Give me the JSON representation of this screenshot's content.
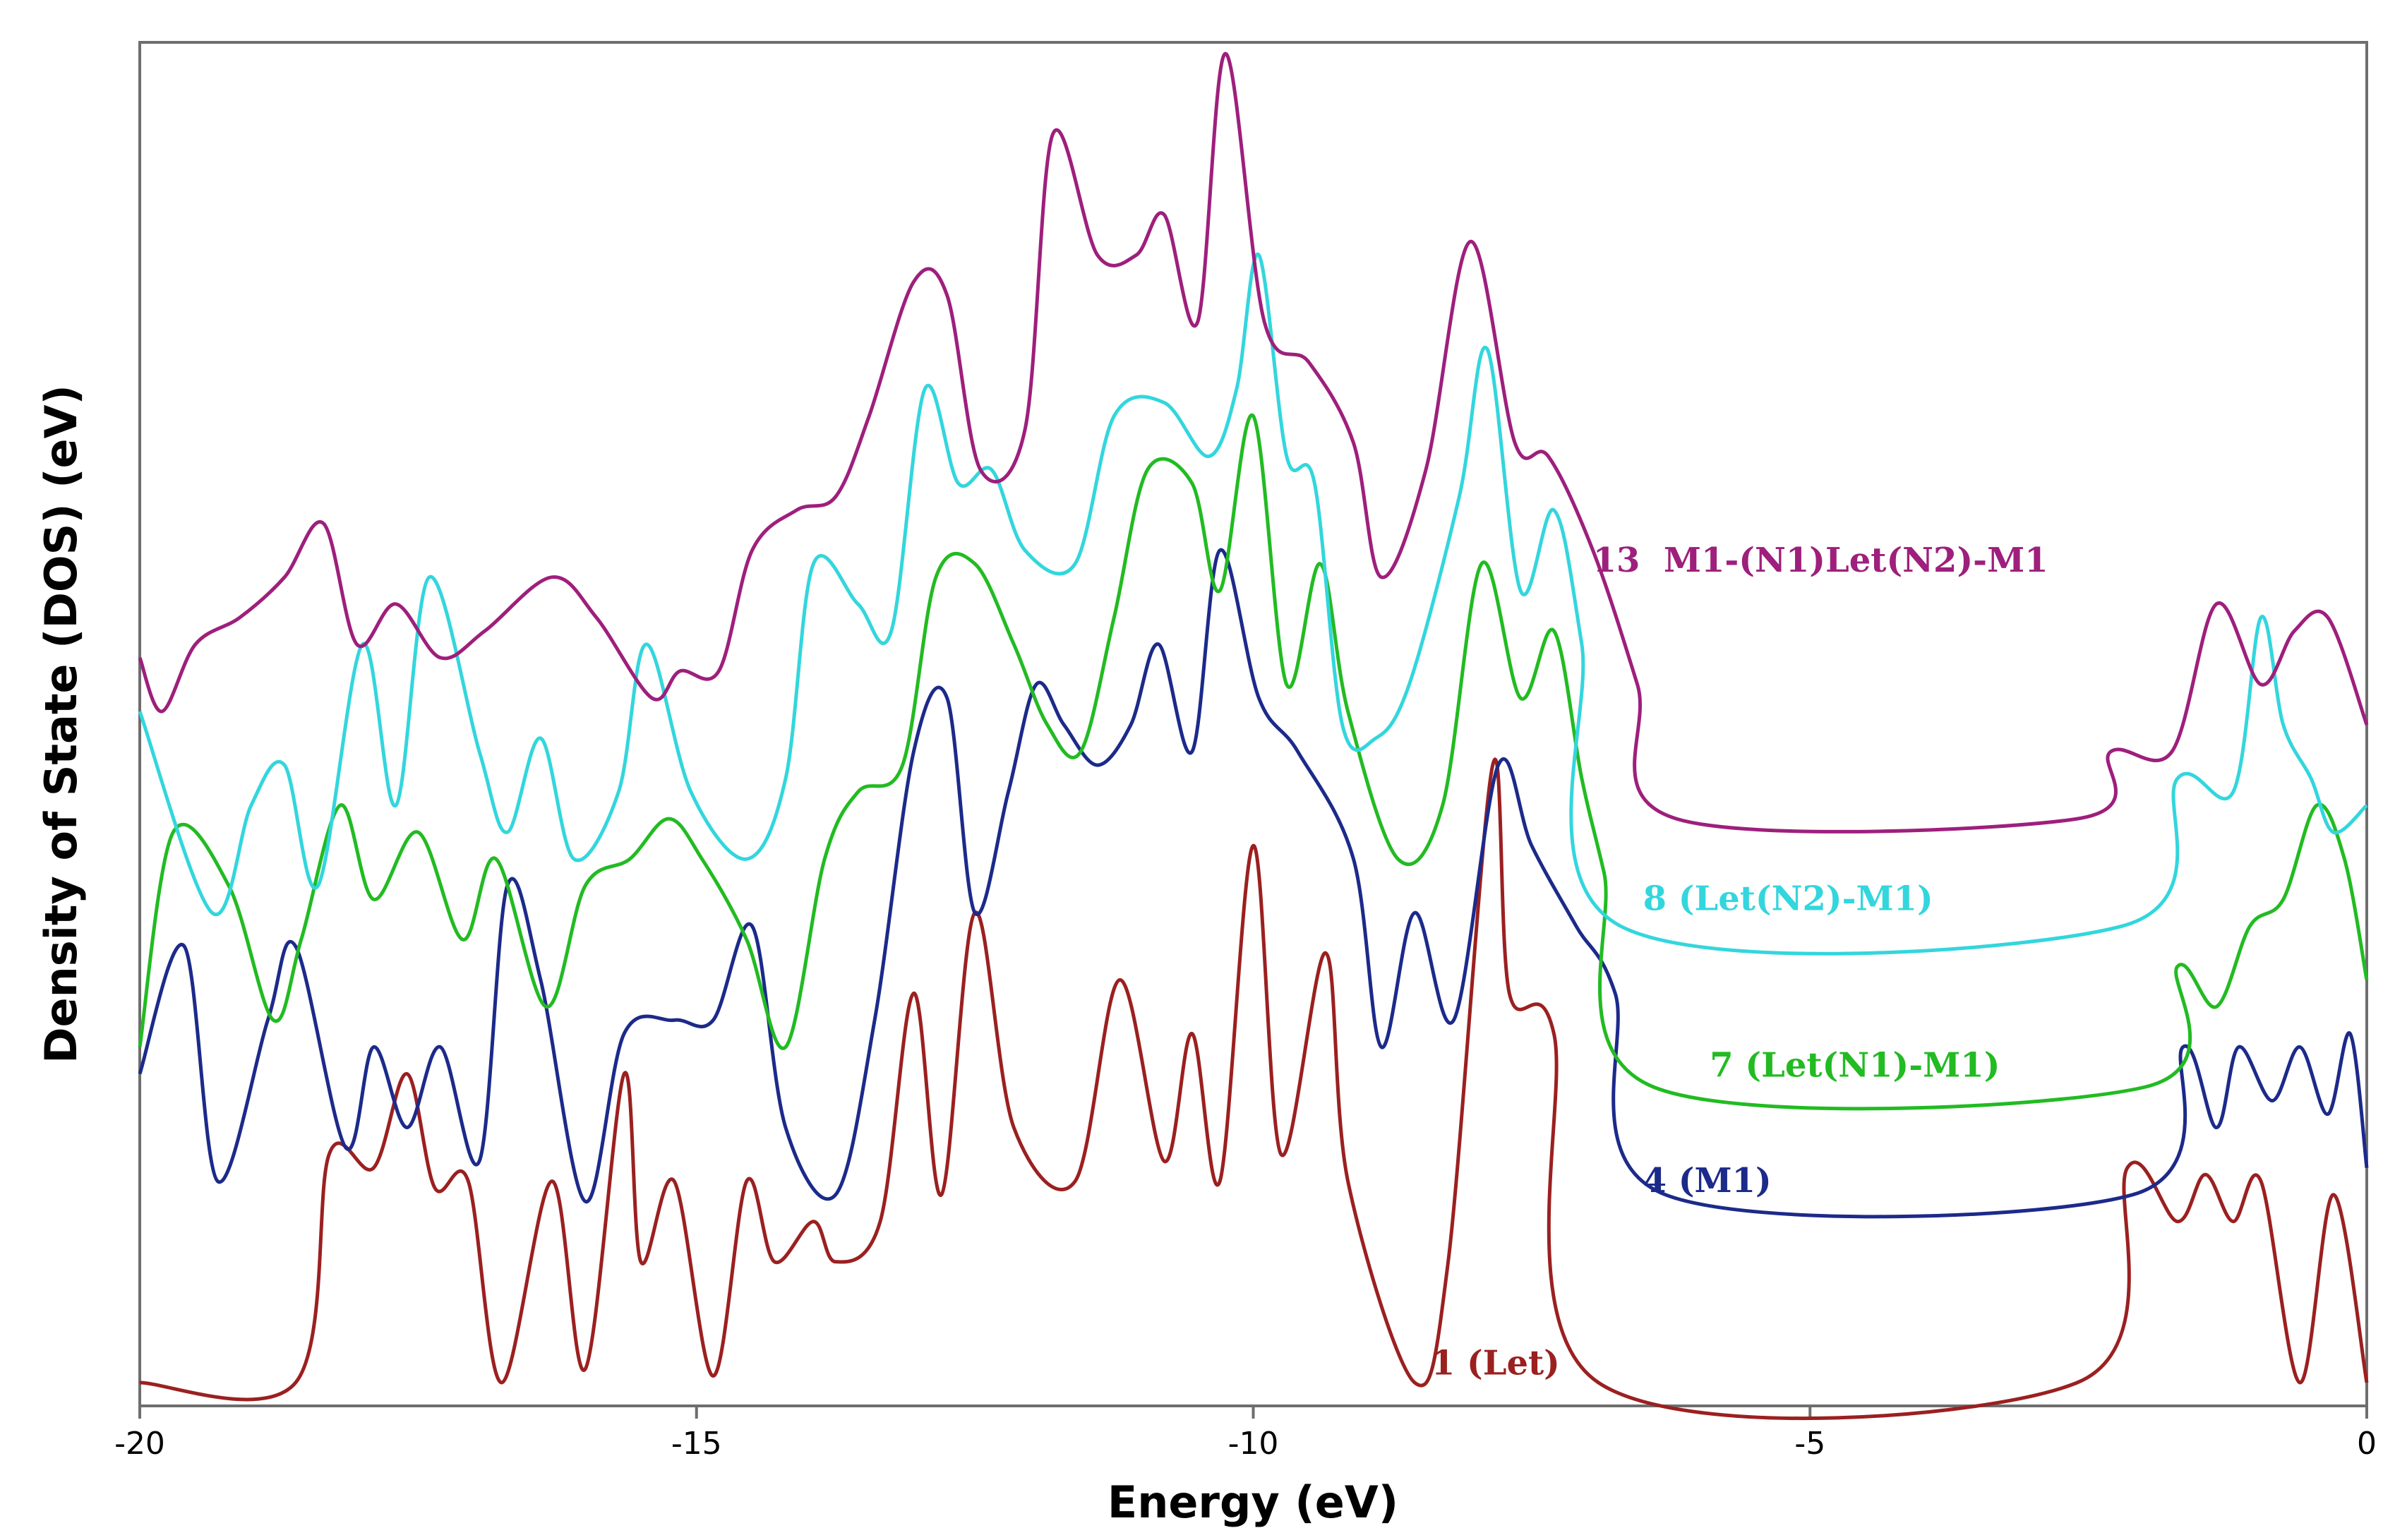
{
  "chart_data": {
    "type": "line",
    "title": "",
    "xlabel": "Energy (eV)",
    "ylabel": "Density of State (DOS) (eV)",
    "xlim": [
      -20,
      0
    ],
    "ylim": [
      0,
      100
    ],
    "xticks": [
      -20,
      -15,
      -10,
      -5,
      0
    ],
    "xtick_labels": [
      "-20",
      "-15",
      "-10",
      "-5",
      "0"
    ],
    "grid": false,
    "series": [
      {
        "name": "1 (Let)",
        "color": "#9b2020",
        "label_at": [
          -8.4,
          1.6
        ],
        "points": [
          [
            -20,
            1
          ],
          [
            -18.6,
            1
          ],
          [
            -18.3,
            18
          ],
          [
            -17.9,
            17
          ],
          [
            -17.6,
            24
          ],
          [
            -17.35,
            15.5
          ],
          [
            -17.05,
            16
          ],
          [
            -16.75,
            1
          ],
          [
            -16.3,
            16
          ],
          [
            -16.0,
            2
          ],
          [
            -15.65,
            24
          ],
          [
            -15.5,
            10
          ],
          [
            -15.2,
            16
          ],
          [
            -14.85,
            1.5
          ],
          [
            -14.55,
            16
          ],
          [
            -14.3,
            10
          ],
          [
            -13.95,
            13
          ],
          [
            -13.75,
            10
          ],
          [
            -13.35,
            13
          ],
          [
            -13.05,
            30
          ],
          [
            -12.8,
            15
          ],
          [
            -12.5,
            36
          ],
          [
            -12.15,
            20
          ],
          [
            -11.6,
            16
          ],
          [
            -11.2,
            31
          ],
          [
            -10.8,
            17.5
          ],
          [
            -10.55,
            27
          ],
          [
            -10.3,
            16
          ],
          [
            -10.0,
            41
          ],
          [
            -9.75,
            18
          ],
          [
            -9.35,
            33
          ],
          [
            -9.15,
            16
          ],
          [
            -8.55,
            1
          ],
          [
            -8.25,
            10
          ],
          [
            -7.85,
            47
          ],
          [
            -7.7,
            30
          ],
          [
            -7.3,
            27
          ],
          [
            -6.9,
            1
          ],
          [
            -2.6,
            1
          ],
          [
            -2.15,
            17
          ],
          [
            -1.7,
            13
          ],
          [
            -1.45,
            16.5
          ],
          [
            -1.2,
            13
          ],
          [
            -0.95,
            16
          ],
          [
            -0.6,
            1
          ],
          [
            -0.3,
            15
          ],
          [
            0,
            1
          ]
        ]
      },
      {
        "name": "4 (M1)",
        "color": "#1c2a8a",
        "label_at": [
          -6.5,
          15.2
        ],
        "points": [
          [
            -20,
            24
          ],
          [
            -19.6,
            33.5
          ],
          [
            -19.3,
            16
          ],
          [
            -18.85,
            28
          ],
          [
            -18.6,
            33.5
          ],
          [
            -18.15,
            18.5
          ],
          [
            -17.9,
            26
          ],
          [
            -17.6,
            20
          ],
          [
            -17.3,
            26
          ],
          [
            -16.95,
            17.5
          ],
          [
            -16.7,
            38
          ],
          [
            -16.4,
            31
          ],
          [
            -16.0,
            14.5
          ],
          [
            -15.65,
            27
          ],
          [
            -15.2,
            28
          ],
          [
            -14.85,
            28
          ],
          [
            -14.5,
            35
          ],
          [
            -14.2,
            20
          ],
          [
            -13.75,
            15
          ],
          [
            -13.4,
            28
          ],
          [
            -13.05,
            48
          ],
          [
            -12.75,
            52
          ],
          [
            -12.5,
            36
          ],
          [
            -12.2,
            45
          ],
          [
            -11.95,
            53
          ],
          [
            -11.7,
            50
          ],
          [
            -11.4,
            47
          ],
          [
            -11.1,
            50
          ],
          [
            -10.85,
            56
          ],
          [
            -10.55,
            48
          ],
          [
            -10.3,
            63
          ],
          [
            -9.95,
            52
          ],
          [
            -9.6,
            48
          ],
          [
            -9.1,
            40
          ],
          [
            -8.85,
            26
          ],
          [
            -8.55,
            36
          ],
          [
            -8.2,
            28
          ],
          [
            -7.8,
            47
          ],
          [
            -7.5,
            41
          ],
          [
            -7.1,
            35
          ],
          [
            -6.75,
            30
          ],
          [
            -6.3,
            15
          ],
          [
            -2.1,
            15
          ],
          [
            -1.65,
            26
          ],
          [
            -1.35,
            20
          ],
          [
            -1.15,
            26
          ],
          [
            -0.85,
            22
          ],
          [
            -0.6,
            26
          ],
          [
            -0.35,
            21
          ],
          [
            -0.15,
            27
          ],
          [
            0,
            17
          ]
        ]
      },
      {
        "name": "7 (Let(N1)-M1)",
        "color": "#22bb22",
        "label_at": [
          -5.9,
          23.8
        ],
        "points": [
          [
            -20,
            26
          ],
          [
            -19.7,
            42
          ],
          [
            -19.2,
            38
          ],
          [
            -18.8,
            28
          ],
          [
            -18.55,
            34
          ],
          [
            -18.2,
            44
          ],
          [
            -17.9,
            37
          ],
          [
            -17.5,
            42
          ],
          [
            -17.1,
            34
          ],
          [
            -16.8,
            40
          ],
          [
            -16.35,
            29
          ],
          [
            -16.0,
            38
          ],
          [
            -15.6,
            40
          ],
          [
            -15.25,
            43
          ],
          [
            -14.95,
            40
          ],
          [
            -14.55,
            34
          ],
          [
            -14.2,
            26
          ],
          [
            -13.85,
            40
          ],
          [
            -13.55,
            45
          ],
          [
            -13.15,
            47
          ],
          [
            -12.85,
            61
          ],
          [
            -12.5,
            62
          ],
          [
            -12.15,
            56
          ],
          [
            -11.85,
            50
          ],
          [
            -11.55,
            48
          ],
          [
            -11.25,
            58
          ],
          [
            -10.95,
            69
          ],
          [
            -10.55,
            68
          ],
          [
            -10.3,
            60
          ],
          [
            -10.0,
            73
          ],
          [
            -9.7,
            53
          ],
          [
            -9.4,
            62
          ],
          [
            -9.15,
            51
          ],
          [
            -8.7,
            40
          ],
          [
            -8.3,
            44
          ],
          [
            -7.95,
            62
          ],
          [
            -7.6,
            52
          ],
          [
            -7.3,
            57
          ],
          [
            -7.05,
            46
          ],
          [
            -6.85,
            39
          ],
          [
            -6.4,
            23
          ],
          [
            -2.0,
            23
          ],
          [
            -1.7,
            32
          ],
          [
            -1.35,
            29
          ],
          [
            -1.05,
            35
          ],
          [
            -0.75,
            37
          ],
          [
            -0.45,
            44
          ],
          [
            -0.2,
            40
          ],
          [
            0,
            31
          ]
        ]
      },
      {
        "name": "8 (Let(N2)-M1)",
        "color": "#33d6dd",
        "label_at": [
          -6.5,
          36.2
        ],
        "points": [
          [
            -20,
            51
          ],
          [
            -19.35,
            36
          ],
          [
            -19.0,
            44
          ],
          [
            -18.7,
            47
          ],
          [
            -18.4,
            38
          ],
          [
            -18.0,
            56
          ],
          [
            -17.7,
            44
          ],
          [
            -17.4,
            61
          ],
          [
            -16.95,
            48
          ],
          [
            -16.7,
            42
          ],
          [
            -16.4,
            49
          ],
          [
            -16.1,
            40
          ],
          [
            -15.7,
            45
          ],
          [
            -15.45,
            56
          ],
          [
            -15.05,
            45
          ],
          [
            -14.55,
            40
          ],
          [
            -14.2,
            46
          ],
          [
            -13.95,
            62
          ],
          [
            -13.55,
            59
          ],
          [
            -13.25,
            57
          ],
          [
            -12.95,
            75
          ],
          [
            -12.65,
            68
          ],
          [
            -12.35,
            69
          ],
          [
            -12.05,
            63
          ],
          [
            -11.6,
            62
          ],
          [
            -11.25,
            73
          ],
          [
            -10.8,
            74
          ],
          [
            -10.4,
            70
          ],
          [
            -10.15,
            75
          ],
          [
            -9.95,
            85
          ],
          [
            -9.7,
            70
          ],
          [
            -9.45,
            68
          ],
          [
            -9.2,
            50
          ],
          [
            -8.9,
            49
          ],
          [
            -8.6,
            53
          ],
          [
            -8.15,
            67
          ],
          [
            -7.9,
            78
          ],
          [
            -7.6,
            60
          ],
          [
            -7.3,
            66
          ],
          [
            -7.05,
            56
          ],
          [
            -6.7,
            35
          ],
          [
            -2.2,
            35
          ],
          [
            -1.7,
            46
          ],
          [
            -1.2,
            45
          ],
          [
            -0.95,
            58
          ],
          [
            -0.75,
            50
          ],
          [
            -0.5,
            46
          ],
          [
            -0.3,
            42
          ],
          [
            0,
            44
          ]
        ]
      },
      {
        "name": "13  M1-(N1)Let(N2)-M1",
        "color": "#9e1f7c",
        "label_at": [
          -6.95,
          61.4
        ],
        "points": [
          [
            -20,
            55
          ],
          [
            -19.8,
            51
          ],
          [
            -19.5,
            56
          ],
          [
            -19.1,
            58
          ],
          [
            -18.7,
            61
          ],
          [
            -18.35,
            65
          ],
          [
            -18.05,
            56
          ],
          [
            -17.7,
            59
          ],
          [
            -17.3,
            55
          ],
          [
            -16.9,
            57
          ],
          [
            -16.3,
            61
          ],
          [
            -15.9,
            58
          ],
          [
            -15.4,
            52
          ],
          [
            -15.15,
            54
          ],
          [
            -14.8,
            54
          ],
          [
            -14.5,
            63
          ],
          [
            -14.1,
            66
          ],
          [
            -13.75,
            67
          ],
          [
            -13.45,
            73
          ],
          [
            -13.05,
            83
          ],
          [
            -12.75,
            82
          ],
          [
            -12.45,
            69
          ],
          [
            -12.05,
            72
          ],
          [
            -11.8,
            94
          ],
          [
            -11.4,
            85
          ],
          [
            -11.05,
            85
          ],
          [
            -10.8,
            88
          ],
          [
            -10.5,
            80
          ],
          [
            -10.25,
            100
          ],
          [
            -9.9,
            80
          ],
          [
            -9.5,
            77
          ],
          [
            -9.1,
            71
          ],
          [
            -8.85,
            61
          ],
          [
            -8.45,
            69
          ],
          [
            -8.05,
            86
          ],
          [
            -7.65,
            71
          ],
          [
            -7.35,
            70
          ],
          [
            -6.95,
            63
          ],
          [
            -6.55,
            53
          ],
          [
            -6.2,
            43
          ],
          [
            -2.6,
            43
          ],
          [
            -2.3,
            48
          ],
          [
            -1.75,
            48
          ],
          [
            -1.35,
            59
          ],
          [
            -0.95,
            53
          ],
          [
            -0.65,
            57
          ],
          [
            -0.35,
            58
          ],
          [
            0,
            50
          ]
        ]
      }
    ]
  }
}
